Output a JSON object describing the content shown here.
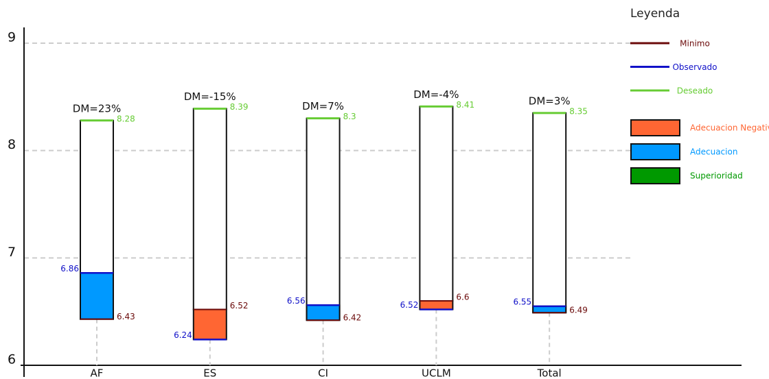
{
  "chart_data": {
    "type": "gap",
    "categories": [
      "AF",
      "ES",
      "CI",
      "UCLM",
      "Total"
    ],
    "series": [
      {
        "name": "Minimo",
        "color": "#6b0a0a",
        "values": [
          6.43,
          6.52,
          6.42,
          6.6,
          6.49
        ]
      },
      {
        "name": "Observado",
        "color": "#1010c8",
        "values": [
          6.86,
          6.24,
          6.56,
          6.52,
          6.55
        ]
      },
      {
        "name": "Deseado",
        "color": "#66cc33",
        "values": [
          8.28,
          8.39,
          8.3,
          8.41,
          8.35
        ]
      }
    ],
    "annotations": [
      "DM=23%",
      "DM=-15%",
      "DM=7%",
      "DM=-4%",
      "DM=3%"
    ],
    "legend_title": "Leyenda",
    "legend_boxes": [
      {
        "name": "Adecuacion Negativa",
        "color": "#ff6633"
      },
      {
        "name": "Adecuacion",
        "color": "#0099ff"
      },
      {
        "name": "Superioridad",
        "color": "#009900"
      }
    ],
    "ylim": [
      6,
      9
    ],
    "yticks": [
      6,
      7,
      8,
      9
    ],
    "grid": true
  }
}
